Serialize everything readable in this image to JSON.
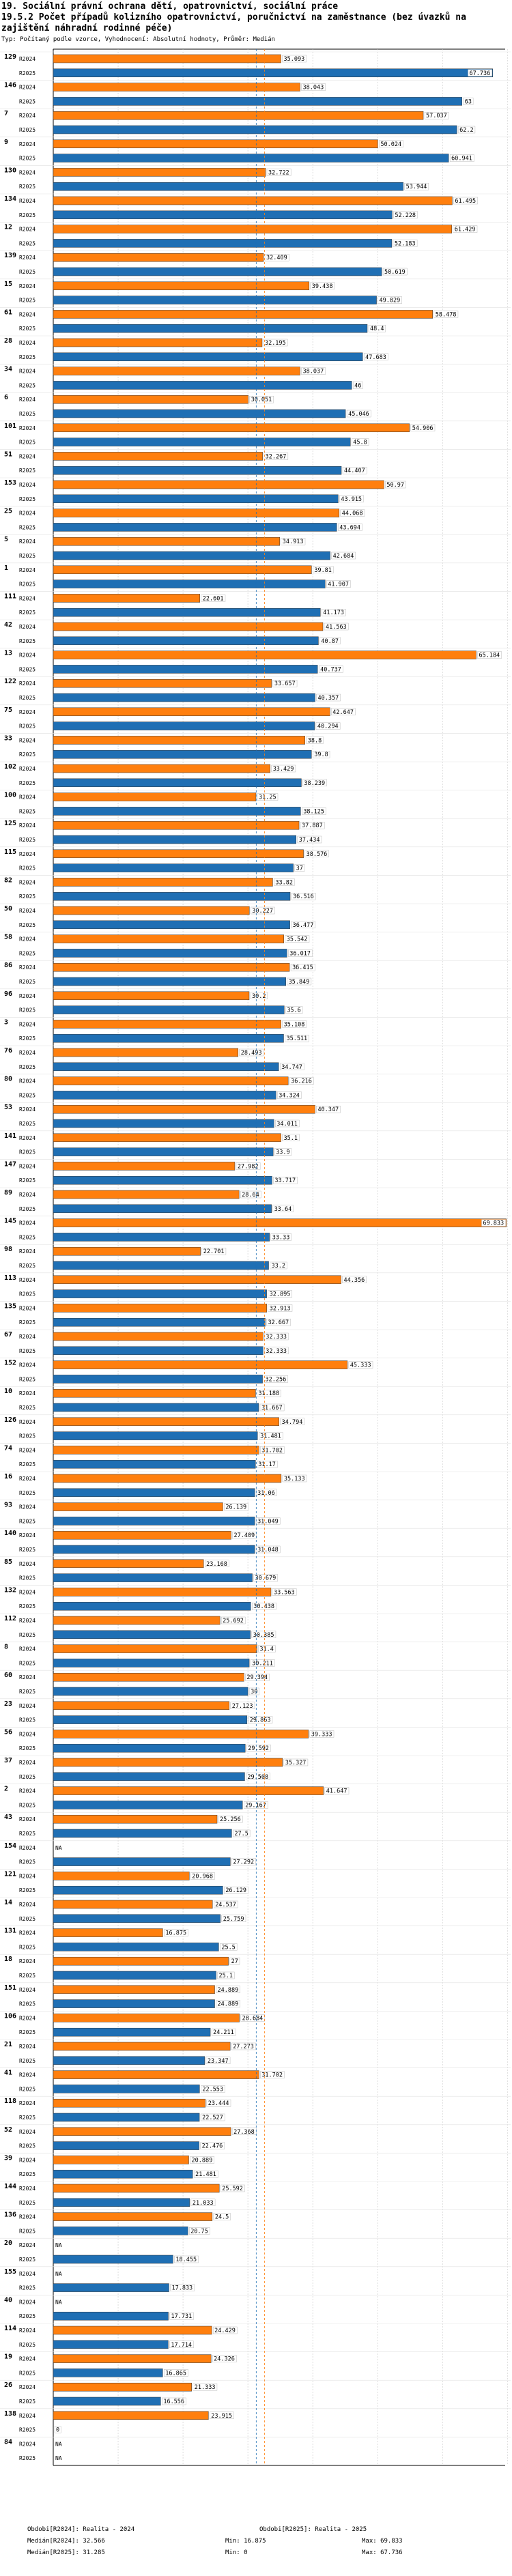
{
  "header": {
    "title_line1": "19. Sociální právní ochrana dětí, opatrovnictví, sociální práce",
    "title_line2": "19.5.2 Počet případů kolizního opatrovnictví, poručnictví na zaměstnance (bez úvazků na zajištění náhradní rodinné péče)",
    "subtitle": "Typ: Počítaný podle vzorce, Vyhodnocení: Absolutní hodnoty, Průměr: Medián"
  },
  "colors": {
    "r2024": "#ff7f0e",
    "r2025": "#1f6fb4"
  },
  "chart_data": {
    "type": "bar",
    "orientation": "horizontal",
    "series_names": [
      "R2024",
      "R2025"
    ],
    "xlim": [
      0,
      70.5
    ],
    "grid": true,
    "median_lines": {
      "R2024": 32.566,
      "R2025": 31.285
    },
    "groups": [
      {
        "id": "129",
        "R2024": 35.093,
        "R2025": 67.736
      },
      {
        "id": "146",
        "R2024": 38.043,
        "R2025": 63
      },
      {
        "id": "7",
        "R2024": 57.037,
        "R2025": 62.2
      },
      {
        "id": "9",
        "R2024": 50.024,
        "R2025": 60.941
      },
      {
        "id": "130",
        "R2024": 32.722,
        "R2025": 53.944
      },
      {
        "id": "134",
        "R2024": 61.495,
        "R2025": 52.228
      },
      {
        "id": "12",
        "R2024": 61.429,
        "R2025": 52.183
      },
      {
        "id": "139",
        "R2024": 32.409,
        "R2025": 50.619
      },
      {
        "id": "15",
        "R2024": 39.438,
        "R2025": 49.829
      },
      {
        "id": "61",
        "R2024": 58.478,
        "R2025": 48.4
      },
      {
        "id": "28",
        "R2024": 32.195,
        "R2025": 47.683
      },
      {
        "id": "34",
        "R2024": 38.037,
        "R2025": 46
      },
      {
        "id": "6",
        "R2024": 30.051,
        "R2025": 45.046
      },
      {
        "id": "101",
        "R2024": 54.906,
        "R2025": 45.8
      },
      {
        "id": "51",
        "R2024": 32.267,
        "R2025": 44.407
      },
      {
        "id": "153",
        "R2024": 50.97,
        "R2025": 43.915
      },
      {
        "id": "25",
        "R2024": 44.068,
        "R2025": 43.694
      },
      {
        "id": "5",
        "R2024": 34.913,
        "R2025": 42.684
      },
      {
        "id": "1",
        "R2024": 39.81,
        "R2025": 41.907
      },
      {
        "id": "111",
        "R2024": 22.601,
        "R2025": 41.173
      },
      {
        "id": "42",
        "R2024": 41.563,
        "R2025": 40.87
      },
      {
        "id": "13",
        "R2024": 65.184,
        "R2025": 40.737
      },
      {
        "id": "122",
        "R2024": 33.657,
        "R2025": 40.357
      },
      {
        "id": "75",
        "R2024": 42.647,
        "R2025": 40.294
      },
      {
        "id": "33",
        "R2024": 38.8,
        "R2025": 39.8
      },
      {
        "id": "102",
        "R2024": 33.429,
        "R2025": 38.239
      },
      {
        "id": "100",
        "R2024": 31.25,
        "R2025": 38.125
      },
      {
        "id": "125",
        "R2024": 37.887,
        "R2025": 37.434
      },
      {
        "id": "115",
        "R2024": 38.576,
        "R2025": 37
      },
      {
        "id": "82",
        "R2024": 33.82,
        "R2025": 36.516
      },
      {
        "id": "50",
        "R2024": 30.227,
        "R2025": 36.477
      },
      {
        "id": "58",
        "R2024": 35.542,
        "R2025": 36.017
      },
      {
        "id": "86",
        "R2024": 36.415,
        "R2025": 35.849
      },
      {
        "id": "96",
        "R2024": 30.2,
        "R2025": 35.6
      },
      {
        "id": "3",
        "R2024": 35.108,
        "R2025": 35.511
      },
      {
        "id": "76",
        "R2024": 28.493,
        "R2025": 34.747
      },
      {
        "id": "80",
        "R2024": 36.216,
        "R2025": 34.324
      },
      {
        "id": "53",
        "R2024": 40.347,
        "R2025": 34.011
      },
      {
        "id": "141",
        "R2024": 35.1,
        "R2025": 33.9
      },
      {
        "id": "147",
        "R2024": 27.982,
        "R2025": 33.717
      },
      {
        "id": "89",
        "R2024": 28.64,
        "R2025": 33.64
      },
      {
        "id": "145",
        "R2024": 69.833,
        "R2025": 33.33
      },
      {
        "id": "98",
        "R2024": 22.701,
        "R2025": 33.2
      },
      {
        "id": "113",
        "R2024": 44.356,
        "R2025": 32.895
      },
      {
        "id": "135",
        "R2024": 32.913,
        "R2025": 32.667
      },
      {
        "id": "67",
        "R2024": 32.333,
        "R2025": 32.333
      },
      {
        "id": "152",
        "R2024": 45.333,
        "R2025": 32.256
      },
      {
        "id": "10",
        "R2024": 31.188,
        "R2025": 31.667
      },
      {
        "id": "126",
        "R2024": 34.794,
        "R2025": 31.481
      },
      {
        "id": "74",
        "R2024": 31.702,
        "R2025": 31.17
      },
      {
        "id": "16",
        "R2024": 35.133,
        "R2025": 31.06
      },
      {
        "id": "93",
        "R2024": 26.139,
        "R2025": 31.049
      },
      {
        "id": "140",
        "R2024": 27.409,
        "R2025": 31.048
      },
      {
        "id": "85",
        "R2024": 23.168,
        "R2025": 30.679
      },
      {
        "id": "132",
        "R2024": 33.563,
        "R2025": 30.438
      },
      {
        "id": "112",
        "R2024": 25.692,
        "R2025": 30.385
      },
      {
        "id": "8",
        "R2024": 31.4,
        "R2025": 30.211
      },
      {
        "id": "60",
        "R2024": 29.394,
        "R2025": 30
      },
      {
        "id": "23",
        "R2024": 27.123,
        "R2025": 29.863
      },
      {
        "id": "56",
        "R2024": 39.333,
        "R2025": 29.592
      },
      {
        "id": "37",
        "R2024": 35.327,
        "R2025": 29.508
      },
      {
        "id": "2",
        "R2024": 41.647,
        "R2025": 29.167
      },
      {
        "id": "43",
        "R2024": 25.256,
        "R2025": 27.5
      },
      {
        "id": "154",
        "R2024": null,
        "R2025": 27.292
      },
      {
        "id": "121",
        "R2024": 20.968,
        "R2025": 26.129
      },
      {
        "id": "14",
        "R2024": 24.537,
        "R2025": 25.759
      },
      {
        "id": "131",
        "R2024": 16.875,
        "R2025": 25.5
      },
      {
        "id": "18",
        "R2024": 27,
        "R2025": 25.1
      },
      {
        "id": "151",
        "R2024": 24.889,
        "R2025": 24.889
      },
      {
        "id": "106",
        "R2024": 28.684,
        "R2025": 24.211
      },
      {
        "id": "21",
        "R2024": 27.273,
        "R2025": 23.347
      },
      {
        "id": "41",
        "R2024": 31.702,
        "R2025": 22.553
      },
      {
        "id": "118",
        "R2024": 23.444,
        "R2025": 22.527
      },
      {
        "id": "52",
        "R2024": 27.368,
        "R2025": 22.476
      },
      {
        "id": "39",
        "R2024": 20.889,
        "R2025": 21.481
      },
      {
        "id": "144",
        "R2024": 25.592,
        "R2025": 21.033
      },
      {
        "id": "136",
        "R2024": 24.5,
        "R2025": 20.75
      },
      {
        "id": "20",
        "R2024": null,
        "R2025": 18.455
      },
      {
        "id": "155",
        "R2024": null,
        "R2025": 17.833
      },
      {
        "id": "40",
        "R2024": null,
        "R2025": 17.731
      },
      {
        "id": "114",
        "R2024": 24.429,
        "R2025": 17.714
      },
      {
        "id": "19",
        "R2024": 24.326,
        "R2025": 16.865
      },
      {
        "id": "26",
        "R2024": 21.333,
        "R2025": 16.556
      },
      {
        "id": "138",
        "R2024": 23.915,
        "R2025": 0
      },
      {
        "id": "84",
        "R2024": null,
        "R2025": null
      }
    ],
    "na_label": "NA"
  },
  "legend": {
    "left": [
      {
        "text": "Obdobi[R2024]: Realita - 2024"
      },
      {
        "text": "Medián[R2024]: 32.566"
      },
      {
        "text": "Medián[R2025]: 31.285"
      }
    ],
    "middle": [
      {
        "text": "Min: 16.875"
      },
      {
        "text": "Min: 0"
      }
    ],
    "right": [
      {
        "text": "Obdobi[R2025]: Realita - 2025"
      },
      {
        "text": "Max: 69.833"
      },
      {
        "text": "Max: 67.736"
      }
    ]
  }
}
